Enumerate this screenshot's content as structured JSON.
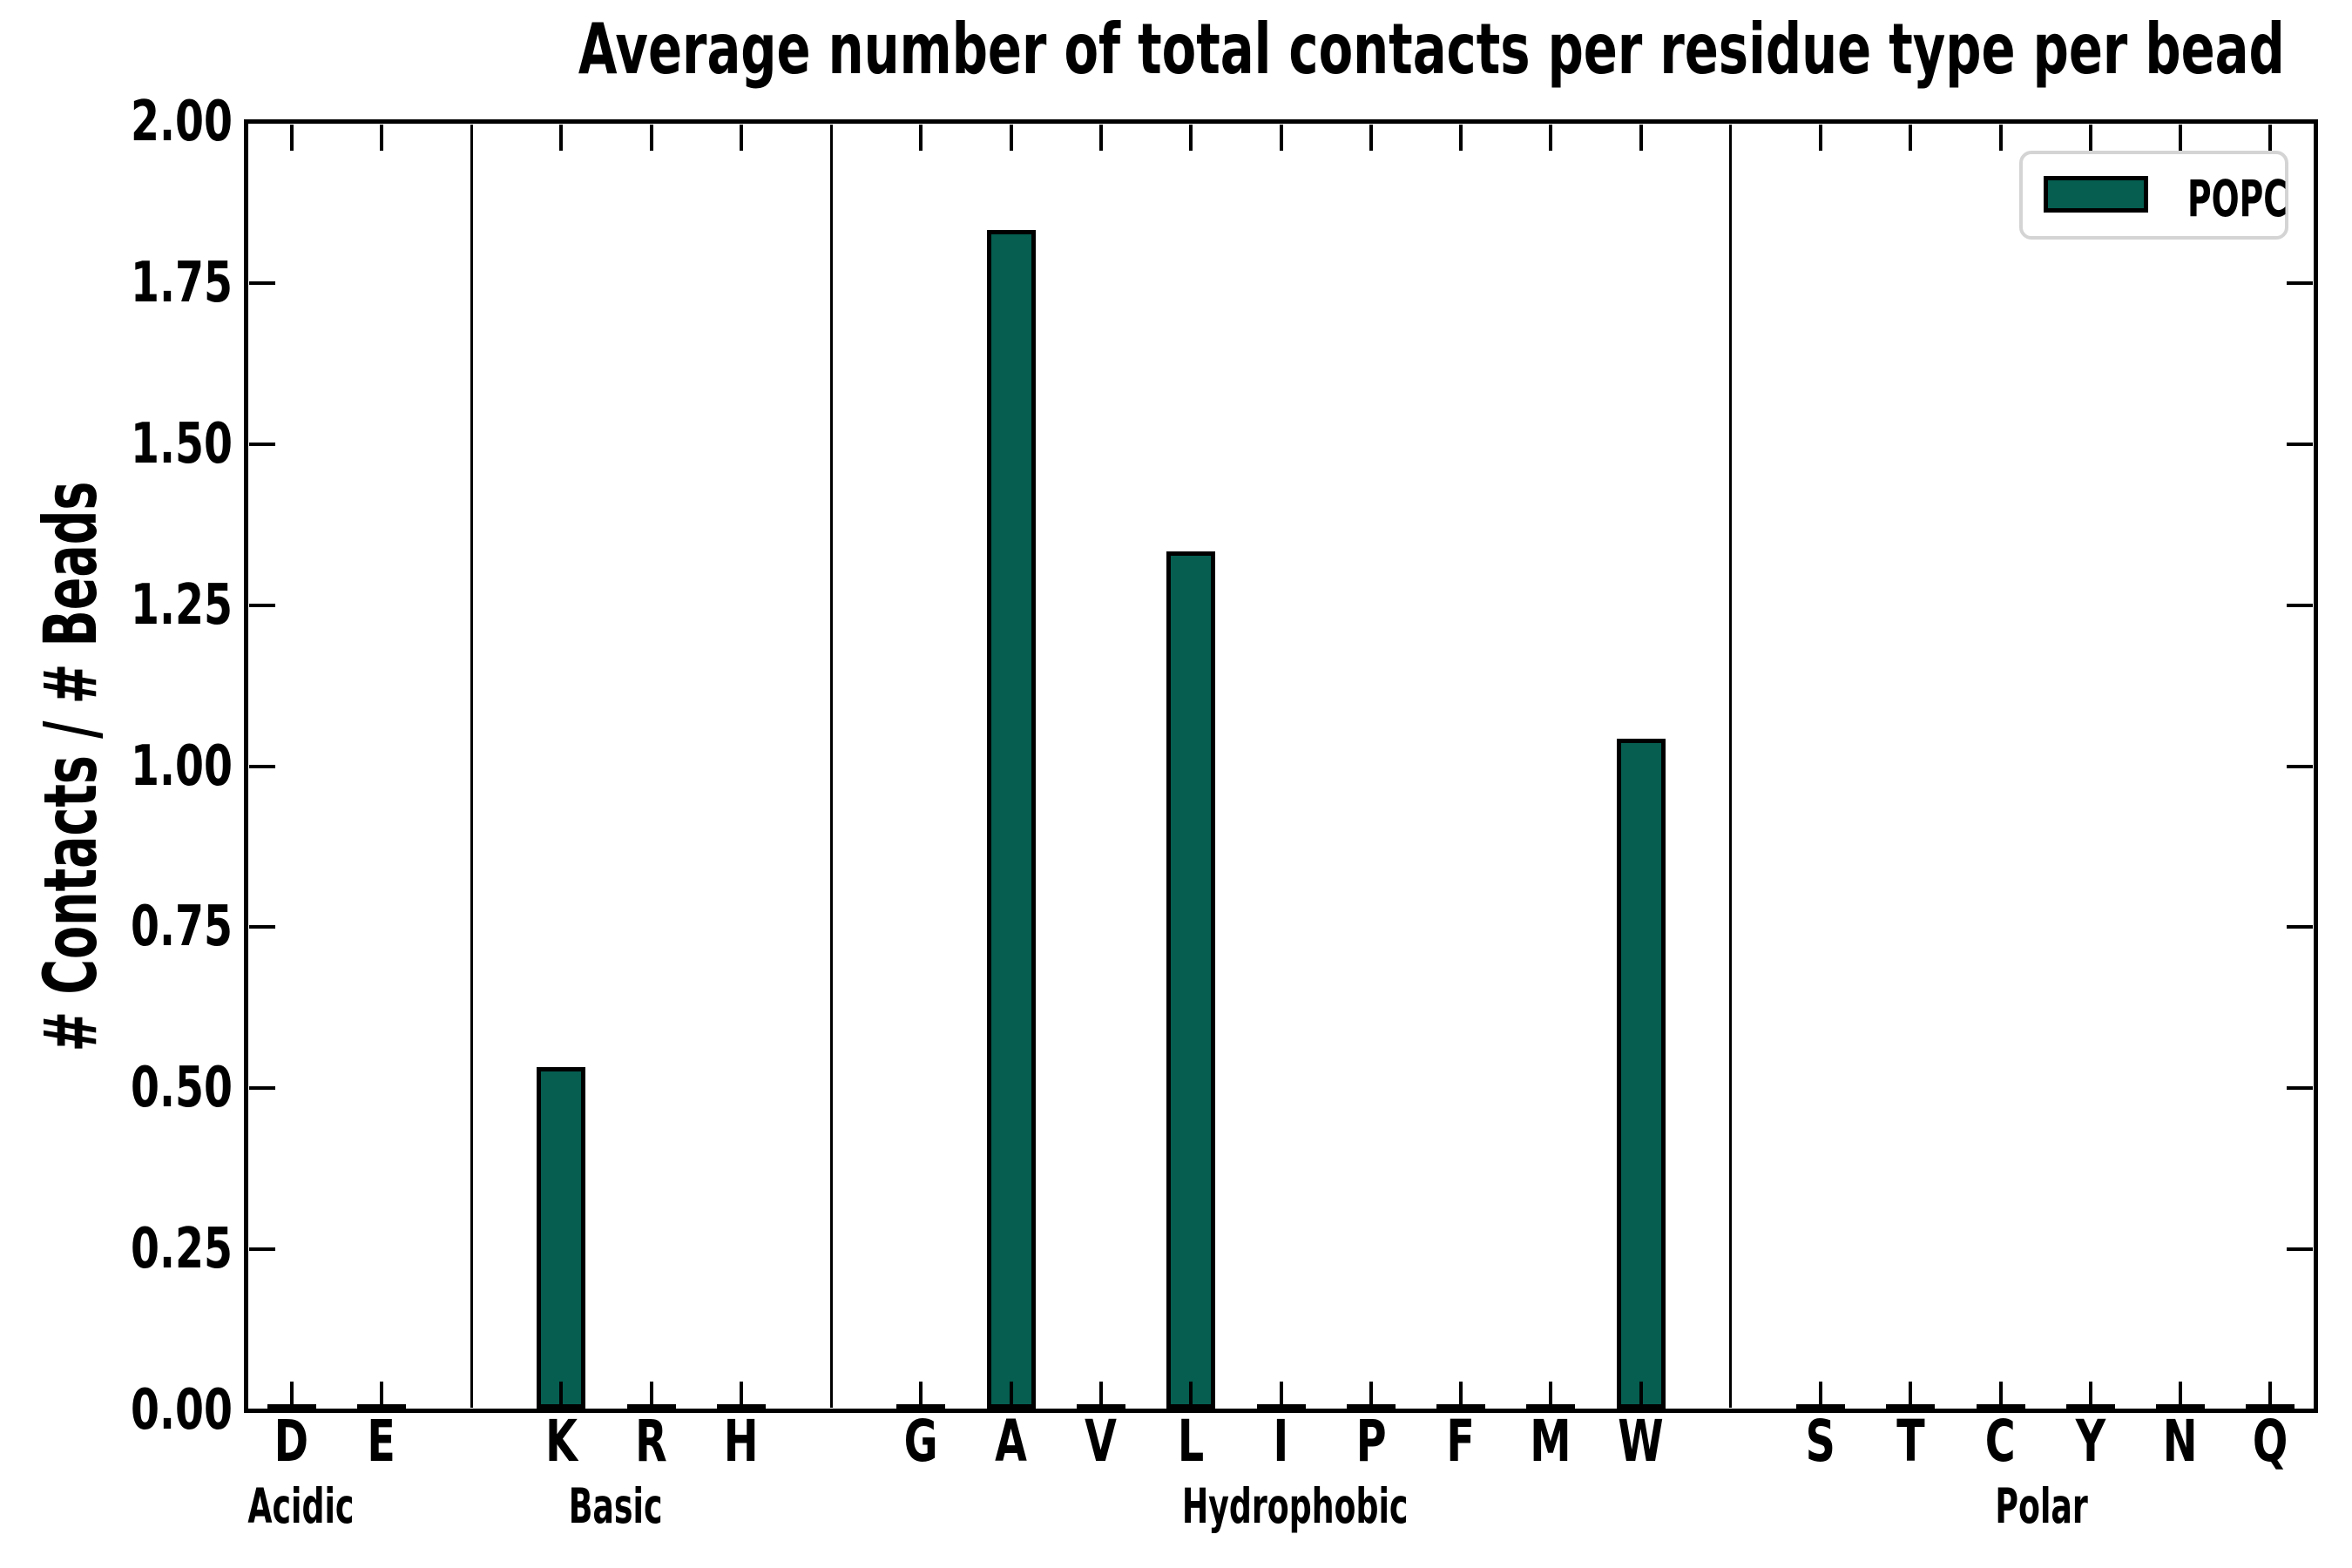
{
  "chart_data": {
    "type": "bar",
    "title": "Average number of total contacts per residue type per bead",
    "ylabel": "# Contacts / # Beads",
    "xlabel": "",
    "ylim": [
      0.0,
      2.0
    ],
    "ytick_step": 0.25,
    "ytick_labels": [
      "0.00",
      "0.25",
      "0.50",
      "0.75",
      "1.00",
      "1.25",
      "1.50",
      "1.75",
      "2.00"
    ],
    "grid": false,
    "tick_direction": "in",
    "groups": [
      {
        "label": "Acidic",
        "categories": [
          "D",
          "E"
        ],
        "values": [
          0,
          0
        ]
      },
      {
        "label": "Basic",
        "categories": [
          "K",
          "R",
          "H"
        ],
        "values": [
          0.53,
          0,
          0
        ]
      },
      {
        "label": "Hydrophobic",
        "categories": [
          "G",
          "A",
          "V",
          "L",
          "I",
          "P",
          "F",
          "M",
          "W"
        ],
        "values": [
          0,
          1.83,
          0,
          1.33,
          0,
          0,
          0,
          0,
          1.04
        ]
      },
      {
        "label": "Polar",
        "categories": [
          "S",
          "T",
          "C",
          "Y",
          "N",
          "Q"
        ],
        "values": [
          0,
          0,
          0,
          0,
          0,
          0
        ]
      }
    ],
    "legend": {
      "label": "POPC",
      "position": "upper right"
    },
    "colors": {
      "bar_fill": "#055e50",
      "bar_edge": "#000000",
      "axis": "#000000",
      "legend_border": "#d4d4d4",
      "background": "#ffffff"
    }
  }
}
